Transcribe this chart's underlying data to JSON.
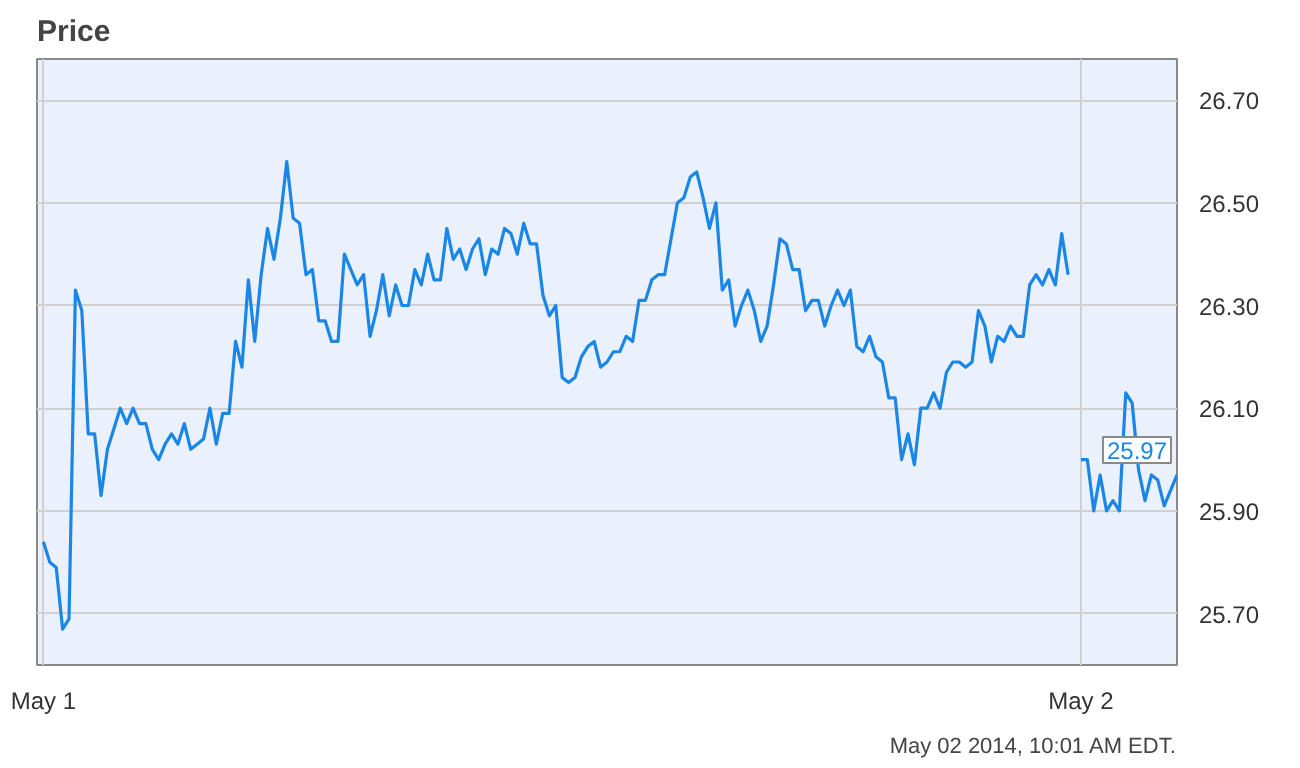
{
  "chart_data": {
    "type": "line",
    "title": "Price",
    "categories": [
      "May 1",
      null,
      null,
      null,
      null,
      null,
      null,
      null,
      null,
      null,
      null,
      null,
      null,
      null,
      null,
      null,
      null,
      null,
      null,
      null,
      null,
      null,
      null,
      null,
      null,
      null,
      null,
      null,
      null,
      null,
      null,
      null,
      null,
      null,
      null,
      null,
      null,
      null,
      null,
      null,
      null,
      null,
      null,
      null,
      null,
      null,
      null,
      null,
      null,
      null,
      null,
      null,
      null,
      null,
      null,
      null,
      null,
      null,
      null,
      null,
      null,
      null,
      null,
      null,
      null,
      null,
      null,
      null,
      null,
      null,
      null,
      null,
      null,
      null,
      null,
      null,
      null,
      null,
      null,
      null,
      null,
      null,
      null,
      null,
      null,
      null,
      null,
      null,
      null,
      null,
      null,
      null,
      null,
      null,
      null,
      null,
      null,
      null,
      null,
      null,
      null,
      null,
      null,
      null,
      null,
      null,
      null,
      null,
      null,
      null,
      null,
      null,
      null,
      null,
      null,
      null,
      null,
      null,
      null,
      null,
      null,
      null,
      null,
      null,
      null,
      null,
      null,
      null,
      null,
      null,
      null,
      null,
      null,
      null,
      null,
      null,
      null,
      null,
      null,
      null,
      null,
      null,
      null,
      null,
      null,
      null,
      null,
      null,
      null,
      null,
      null,
      null,
      null,
      null,
      null,
      null,
      null,
      null,
      null,
      null,
      null,
      null,
      "May 2",
      null,
      null,
      null,
      null,
      null,
      null,
      null,
      null,
      null,
      null,
      null,
      null,
      null,
      null,
      null
    ],
    "series": [
      {
        "color": "#1a87e6",
        "values": [
          25.84,
          25.8,
          25.79,
          25.67,
          25.69,
          26.33,
          26.29,
          26.05,
          26.05,
          25.93,
          26.02,
          26.06,
          26.1,
          26.07,
          26.1,
          26.07,
          26.07,
          26.02,
          26.0,
          26.03,
          26.05,
          26.03,
          26.07,
          26.02,
          26.03,
          26.04,
          26.1,
          26.03,
          26.09,
          26.09,
          26.23,
          26.18,
          26.35,
          26.23,
          26.36,
          26.45,
          26.39,
          26.47,
          26.58,
          26.47,
          26.46,
          26.36,
          26.37,
          26.27,
          26.27,
          26.23,
          26.23,
          26.4,
          26.37,
          26.34,
          26.36,
          26.24,
          26.29,
          26.36,
          26.28,
          26.34,
          26.3,
          26.3,
          26.37,
          26.34,
          26.4,
          26.35,
          26.35,
          26.45,
          26.39,
          26.41,
          26.37,
          26.41,
          26.43,
          26.36,
          26.41,
          26.4,
          26.45,
          26.44,
          26.4,
          26.46,
          26.42,
          26.42,
          26.32,
          26.28,
          26.3,
          26.16,
          26.15,
          26.16,
          26.2,
          26.22,
          26.23,
          26.18,
          26.19,
          26.21,
          26.21,
          26.24,
          26.23,
          26.31,
          26.31,
          26.35,
          26.36,
          26.36,
          26.43,
          26.5,
          26.51,
          26.55,
          26.56,
          26.51,
          26.45,
          26.5,
          26.33,
          26.35,
          26.26,
          26.3,
          26.33,
          26.29,
          26.23,
          26.26,
          26.34,
          26.43,
          26.42,
          26.37,
          26.37,
          26.29,
          26.31,
          26.31,
          26.26,
          26.3,
          26.33,
          26.3,
          26.33,
          26.22,
          26.21,
          26.24,
          26.2,
          26.19,
          26.12,
          26.12,
          26.0,
          26.05,
          25.99,
          26.1,
          26.1,
          26.13,
          26.1,
          26.17,
          26.19,
          26.19,
          26.18,
          26.19,
          26.29,
          26.26,
          26.19,
          26.24,
          26.23,
          26.26,
          26.24,
          26.24,
          26.34,
          26.36,
          26.34,
          26.37,
          26.34,
          26.44,
          26.36,
          null,
          26.0,
          26.0,
          25.9,
          25.97,
          25.9,
          25.92,
          25.9,
          26.13,
          26.11,
          25.98,
          25.92,
          25.97,
          25.96,
          25.91,
          25.94,
          25.97
        ]
      }
    ],
    "ylim": [
      25.6,
      26.78
    ],
    "yticks": [
      {
        "value": 25.7,
        "label": "25.70"
      },
      {
        "value": 25.9,
        "label": "25.90"
      },
      {
        "value": 26.1,
        "label": "26.10"
      },
      {
        "value": 26.3,
        "label": "26.30"
      },
      {
        "value": 26.5,
        "label": "26.50"
      },
      {
        "value": 26.7,
        "label": "26.70"
      }
    ],
    "grid": true,
    "annotations": [
      {
        "text": "25.97",
        "y": 25.97
      },
      "May 02 2014, 10:01 AM EDT."
    ]
  }
}
